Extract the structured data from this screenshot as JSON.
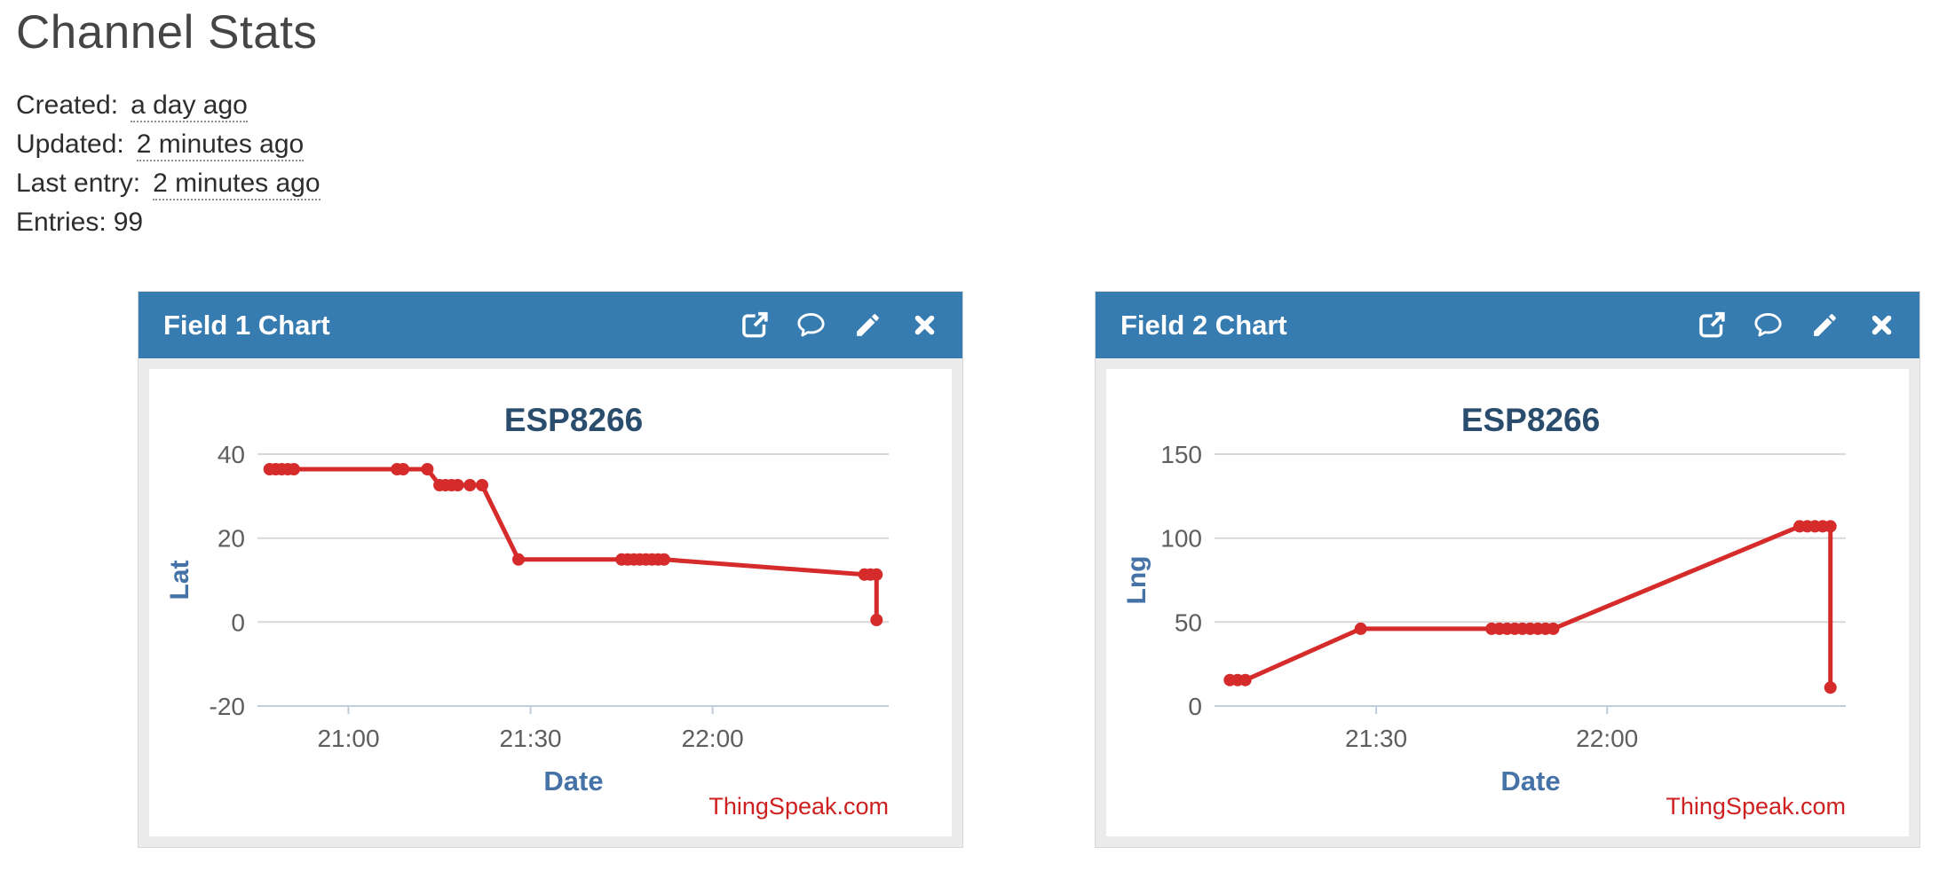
{
  "page_title": "Channel Stats",
  "meta": [
    {
      "label": "Created:",
      "value": "a day ago"
    },
    {
      "label": "Updated:",
      "value": "2 minutes ago"
    },
    {
      "label": "Last entry:",
      "value": "2 minutes ago"
    },
    {
      "label": "Entries:",
      "value": "99"
    }
  ],
  "panels": [
    {
      "title": "Field 1 Chart",
      "icons": [
        "external-link",
        "comment",
        "edit-pencil",
        "close"
      ]
    },
    {
      "title": "Field 2 Chart",
      "icons": [
        "external-link",
        "comment",
        "edit-pencil",
        "close"
      ]
    }
  ],
  "colors": {
    "header_blue": "#367CB0",
    "panel_gray": "#EBEBEB",
    "line_red": "#D62B2B",
    "credits_red": "#CE2020",
    "chart_title": "#2B4D6D",
    "axis_title": "#4572A7",
    "tick": "#5E5E5E",
    "gridline": "#D8D8D8",
    "axis_line": "#C0CEDC"
  },
  "chart_data": [
    {
      "type": "line",
      "title": "ESP8266",
      "xlabel": "Date",
      "ylabel": "Lat",
      "credits": "ThingSpeak.com",
      "x_range": [
        "20:45",
        "22:29"
      ],
      "x_ticks": [
        "21:00",
        "21:30",
        "22:00"
      ],
      "ylim": [
        -20,
        40
      ],
      "y_ticks": [
        -20,
        0,
        20,
        40
      ],
      "grid": true,
      "legend": "none",
      "points": [
        [
          "20:47",
          36.4
        ],
        [
          "20:48",
          36.4
        ],
        [
          "20:49",
          36.4
        ],
        [
          "20:50",
          36.4
        ],
        [
          "20:51",
          36.4
        ],
        [
          "21:08",
          36.4
        ],
        [
          "21:09",
          36.4
        ],
        [
          "21:13",
          36.4
        ],
        [
          "21:15",
          32.6
        ],
        [
          "21:16",
          32.6
        ],
        [
          "21:17",
          32.6
        ],
        [
          "21:18",
          32.6
        ],
        [
          "21:20",
          32.6
        ],
        [
          "21:22",
          32.6
        ],
        [
          "21:28",
          14.9
        ],
        [
          "21:45",
          14.9
        ],
        [
          "21:46",
          14.9
        ],
        [
          "21:47",
          14.9
        ],
        [
          "21:48",
          14.9
        ],
        [
          "21:49",
          14.9
        ],
        [
          "21:50",
          14.9
        ],
        [
          "21:51",
          14.9
        ],
        [
          "21:52",
          14.9
        ],
        [
          "22:25",
          11.3
        ],
        [
          "22:26",
          11.3
        ],
        [
          "22:27",
          11.3
        ],
        [
          "22:27",
          0.5
        ]
      ]
    },
    {
      "type": "line",
      "title": "ESP8266",
      "xlabel": "Date",
      "ylabel": "Lng",
      "credits": "ThingSpeak.com",
      "x_range": [
        "21:09",
        "22:31"
      ],
      "x_ticks": [
        "21:30",
        "22:00"
      ],
      "ylim": [
        0,
        150
      ],
      "y_ticks": [
        0,
        50,
        100,
        150
      ],
      "grid": true,
      "legend": "none",
      "points": [
        [
          "21:11",
          15.5
        ],
        [
          "21:12",
          15.5
        ],
        [
          "21:13",
          15.5
        ],
        [
          "21:28",
          46.0
        ],
        [
          "21:45",
          46.0
        ],
        [
          "21:46",
          46.0
        ],
        [
          "21:47",
          46.0
        ],
        [
          "21:48",
          46.0
        ],
        [
          "21:49",
          46.0
        ],
        [
          "21:50",
          46.0
        ],
        [
          "21:51",
          46.0
        ],
        [
          "21:52",
          46.0
        ],
        [
          "21:53",
          46.0
        ],
        [
          "22:25",
          107.0
        ],
        [
          "22:26",
          107.0
        ],
        [
          "22:27",
          107.0
        ],
        [
          "22:28",
          107.0
        ],
        [
          "22:29",
          107.0
        ],
        [
          "22:29",
          11.0
        ]
      ]
    }
  ]
}
